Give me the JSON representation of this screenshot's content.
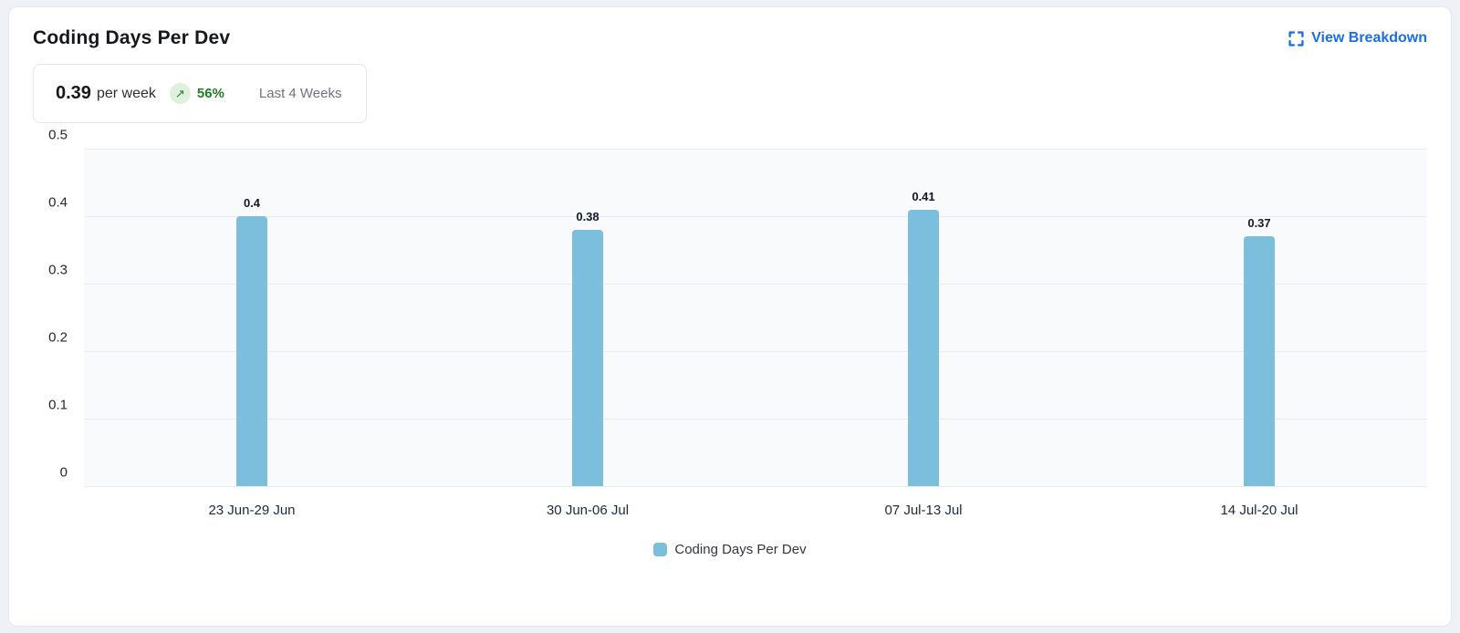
{
  "card": {
    "title": "Coding Days Per Dev",
    "action": {
      "label": "View Breakdown",
      "icon": "expand-icon"
    }
  },
  "summary": {
    "value": "0.39",
    "unit": "per week",
    "trend": {
      "direction": "up",
      "arrow": "↗",
      "percent": "56%"
    },
    "period": "Last 4 Weeks"
  },
  "chart_data": {
    "type": "bar",
    "title": "Coding Days Per Dev",
    "categories": [
      "23 Jun-29 Jun",
      "30 Jun-06 Jul",
      "07 Jul-13 Jul",
      "14 Jul-20 Jul"
    ],
    "values": [
      0.4,
      0.38,
      0.41,
      0.37
    ],
    "value_labels": [
      "0.4",
      "0.38",
      "0.41",
      "0.37"
    ],
    "xlabel": "",
    "ylabel": "",
    "ylim": [
      0,
      0.5
    ],
    "yticks": [
      0,
      0.1,
      0.2,
      0.3,
      0.4,
      0.5
    ],
    "ytick_labels": [
      "0",
      "0.1",
      "0.2",
      "0.3",
      "0.4",
      "0.5"
    ],
    "grid": true,
    "legend_position": "bottom",
    "legend": [
      {
        "label": "Coding Days Per Dev",
        "color": "#7bbfdc"
      }
    ],
    "bar_color": "#7bbfdc"
  },
  "colors": {
    "accent_blue": "#1a6fe0",
    "bar_blue": "#7bbfdc",
    "trend_green": "#1e7e24",
    "trend_badge_bg": "#ddf1dd",
    "muted_text": "#6f7280",
    "plot_bg": "#f8fafc",
    "gridline": "#e9ecf1"
  }
}
